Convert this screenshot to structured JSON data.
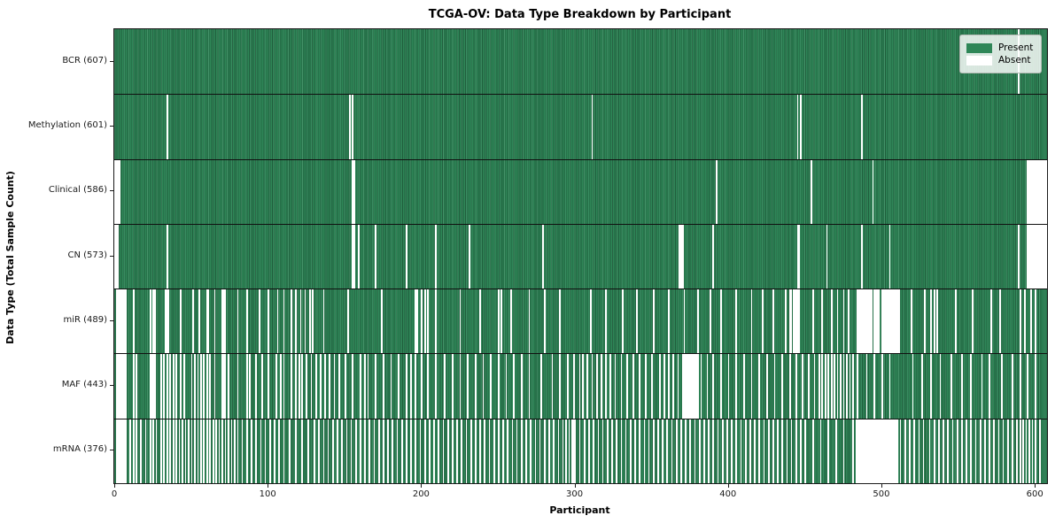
{
  "figure": {
    "title": "TCGA-OV: Data Type Breakdown by Participant",
    "xlabel": "Participant",
    "ylabel": "Data Type (Total Sample Count)"
  },
  "legend": {
    "items": [
      {
        "label": "Present",
        "color": "#2e8657"
      },
      {
        "label": "Absent",
        "color": "#ffffff"
      }
    ]
  },
  "chart_data": {
    "type": "heatmap",
    "title": "TCGA-OV: Data Type Breakdown by Participant",
    "xlabel": "Participant",
    "ylabel": "Data Type (Total Sample Count)",
    "legend_position": "upper right",
    "x_ticks": [
      0,
      100,
      200,
      300,
      400,
      500,
      600
    ],
    "xlim": [
      0,
      608
    ],
    "n_participants": 608,
    "colors": {
      "present": "#2e8657",
      "absent": "#ffffff",
      "grid_line": "#101010"
    },
    "value_encoding": {
      "present": "green cell",
      "absent": "white cell"
    },
    "rows": [
      {
        "label": "BCR (607)",
        "name": "BCR",
        "present_count": 607,
        "absent_participants": [
          589
        ]
      },
      {
        "label": "Methylation (601)",
        "name": "Methylation",
        "present_count": 601,
        "absent_participants": [
          34,
          153,
          155,
          311,
          445,
          447,
          487
        ]
      },
      {
        "label": "Clinical (586)",
        "name": "Clinical",
        "present_count": 586,
        "absent_participants": [
          0,
          1,
          2,
          3,
          155,
          156,
          392,
          454,
          494,
          595,
          596,
          597,
          598,
          599,
          600,
          601,
          602,
          603,
          604,
          605,
          606,
          607
        ]
      },
      {
        "label": "CN (573)",
        "name": "CN",
        "present_count": 573,
        "absent_participants": [
          0,
          1,
          2,
          34,
          155,
          156,
          159,
          170,
          190,
          209,
          231,
          279,
          368,
          369,
          370,
          390,
          445,
          446,
          464,
          487,
          505,
          589,
          595,
          596,
          597,
          598,
          599,
          600,
          601,
          602,
          603,
          604,
          605,
          606,
          607
        ]
      },
      {
        "label": "miR (489)",
        "name": "miR",
        "present_count": 489,
        "absent_participants": [
          1,
          2,
          3,
          4,
          5,
          6,
          7,
          12,
          23,
          25,
          26,
          33,
          34,
          35,
          43,
          51,
          55,
          60,
          61,
          65,
          70,
          71,
          72,
          80,
          86,
          94,
          100,
          106,
          110,
          115,
          118,
          121,
          124,
          127,
          129,
          136,
          152,
          174,
          196,
          197,
          200,
          202,
          204,
          209,
          225,
          238,
          250,
          252,
          258,
          270,
          280,
          290,
          310,
          320,
          331,
          340,
          351,
          361,
          371,
          380,
          388,
          395,
          405,
          415,
          422,
          429,
          437,
          440,
          441,
          442,
          443,
          444,
          445,
          446,
          455,
          461,
          467,
          471,
          475,
          478,
          484,
          485,
          486,
          487,
          488,
          489,
          490,
          491,
          492,
          493,
          495,
          496,
          497,
          498,
          500,
          501,
          502,
          503,
          504,
          505,
          506,
          507,
          508,
          509,
          510,
          511,
          519,
          528,
          532,
          534,
          536,
          548,
          559,
          571,
          577,
          590,
          593,
          597,
          600
        ]
      },
      {
        "label": "MAF (443)",
        "name": "MAF",
        "present_count": 443,
        "absent_participants": [
          1,
          2,
          3,
          4,
          5,
          6,
          7,
          12,
          14,
          23,
          24,
          25,
          26,
          30,
          32,
          34,
          36,
          38,
          40,
          43,
          45,
          50,
          52,
          54,
          56,
          58,
          60,
          62,
          65,
          70,
          71,
          72,
          74,
          80,
          86,
          88,
          92,
          96,
          100,
          105,
          108,
          110,
          115,
          118,
          120,
          122,
          125,
          128,
          131,
          134,
          137,
          140,
          143,
          146,
          150,
          155,
          160,
          163,
          165,
          170,
          175,
          180,
          185,
          190,
          193,
          196,
          200,
          204,
          209,
          215,
          220,
          225,
          230,
          235,
          240,
          245,
          250,
          255,
          260,
          265,
          270,
          278,
          285,
          290,
          295,
          299,
          303,
          305,
          308,
          311,
          314,
          317,
          320,
          323,
          326,
          330,
          334,
          338,
          342,
          346,
          350,
          355,
          358,
          361,
          364,
          367,
          370,
          371,
          372,
          373,
          374,
          375,
          376,
          377,
          378,
          379,
          380,
          382,
          386,
          390,
          395,
          400,
          405,
          410,
          415,
          420,
          425,
          430,
          435,
          440,
          444,
          448,
          452,
          456,
          459,
          461,
          463,
          465,
          467,
          469,
          471,
          473,
          475,
          477,
          479,
          481,
          484,
          490,
          495,
          500,
          505,
          520,
          526,
          532,
          538,
          545,
          552,
          558,
          565,
          570,
          578,
          585,
          590,
          595,
          600
        ]
      },
      {
        "label": "mRNA (376)",
        "name": "mRNA",
        "present_count": 376,
        "absent_participants": [
          1,
          2,
          3,
          4,
          5,
          6,
          7,
          10,
          12,
          14,
          17,
          20,
          23,
          25,
          27,
          30,
          32,
          34,
          36,
          38,
          40,
          42,
          44,
          46,
          48,
          50,
          52,
          54,
          56,
          58,
          60,
          62,
          64,
          66,
          68,
          70,
          72,
          74,
          76,
          78,
          80,
          83,
          86,
          89,
          92,
          95,
          98,
          101,
          104,
          107,
          110,
          114,
          118,
          122,
          126,
          130,
          133,
          136,
          139,
          142,
          145,
          148,
          151,
          154,
          157,
          160,
          163,
          166,
          169,
          172,
          175,
          178,
          181,
          184,
          187,
          190,
          193,
          196,
          199,
          202,
          205,
          208,
          211,
          214,
          217,
          220,
          223,
          226,
          229,
          232,
          235,
          238,
          241,
          244,
          247,
          250,
          253,
          256,
          259,
          262,
          265,
          268,
          271,
          274,
          277,
          280,
          283,
          286,
          289,
          292,
          294,
          296,
          298,
          299,
          300,
          303,
          306,
          309,
          312,
          315,
          318,
          321,
          324,
          327,
          330,
          333,
          336,
          339,
          342,
          345,
          348,
          351,
          354,
          357,
          360,
          363,
          366,
          369,
          372,
          375,
          378,
          381,
          384,
          387,
          390,
          393,
          396,
          399,
          402,
          405,
          408,
          411,
          414,
          417,
          420,
          423,
          426,
          429,
          432,
          435,
          438,
          441,
          444,
          447,
          450,
          455,
          460,
          465,
          470,
          475,
          481,
          483,
          484,
          485,
          486,
          487,
          488,
          489,
          490,
          491,
          492,
          493,
          494,
          495,
          496,
          497,
          498,
          499,
          500,
          501,
          502,
          503,
          504,
          505,
          506,
          507,
          508,
          509,
          510,
          512,
          515,
          518,
          521,
          524,
          527,
          531,
          534,
          537,
          540,
          543,
          546,
          549,
          552,
          555,
          558,
          561,
          564,
          567,
          570,
          573,
          576,
          579,
          582,
          585,
          588,
          590,
          592,
          594,
          596,
          598,
          600,
          603
        ]
      }
    ]
  }
}
